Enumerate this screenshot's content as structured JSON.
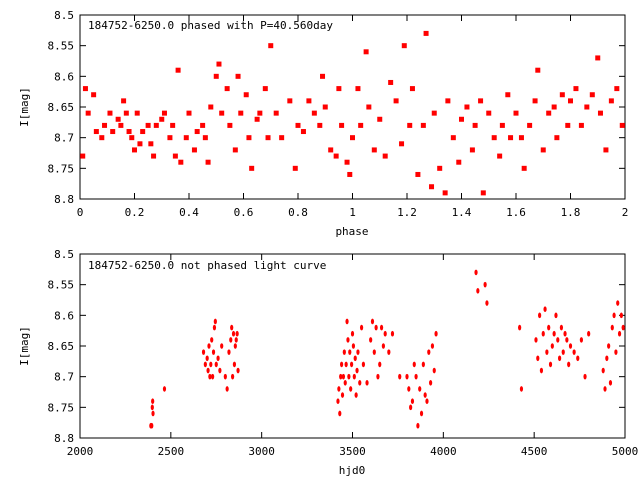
{
  "chart_data": [
    {
      "type": "scatter",
      "title": "184752-6250.0 phased with P=40.560day",
      "xlabel": "phase",
      "ylabel": "I[mag]",
      "xlim": [
        0,
        2
      ],
      "ylim": [
        8.8,
        8.5
      ],
      "y_inverted": true,
      "xticks": [
        "0",
        "0.2",
        "0.4",
        "0.6",
        "0.8",
        "1",
        "1.2",
        "1.4",
        "1.6",
        "1.8",
        "2"
      ],
      "xtick_values": [
        0,
        0.2,
        0.4,
        0.6,
        0.8,
        1.0,
        1.2,
        1.4,
        1.6,
        1.8,
        2.0
      ],
      "yticks": [
        "8.5",
        "8.55",
        "8.6",
        "8.65",
        "8.7",
        "8.75",
        "8.8"
      ],
      "ytick_values": [
        8.5,
        8.55,
        8.6,
        8.65,
        8.7,
        8.75,
        8.8
      ],
      "marker_color": "#ff0000",
      "series": [
        {
          "x": [
            0.01,
            0.02,
            0.03,
            0.05,
            0.06,
            0.08,
            0.09,
            0.11,
            0.12,
            0.14,
            0.15,
            0.16,
            0.17,
            0.18,
            0.19,
            0.2,
            0.21,
            0.22,
            0.23,
            0.25,
            0.26,
            0.27,
            0.28,
            0.3,
            0.31,
            0.33,
            0.34,
            0.35,
            0.36,
            0.37,
            0.39,
            0.4,
            0.42,
            0.43,
            0.45,
            0.46,
            0.47,
            0.48,
            0.5,
            0.51,
            0.52,
            0.54,
            0.55,
            0.57,
            0.58,
            0.59,
            0.61,
            0.62,
            0.63,
            0.65,
            0.66,
            0.68,
            0.69,
            0.7,
            0.72,
            0.74,
            0.77,
            0.79,
            0.8,
            0.82,
            0.84,
            0.86,
            0.88,
            0.89,
            0.9,
            0.92,
            0.94,
            0.95,
            0.96,
            0.98,
            0.99,
            1.0,
            1.02,
            1.03,
            1.05,
            1.06,
            1.08,
            1.1,
            1.12,
            1.14,
            1.16,
            1.18,
            1.19,
            1.21,
            1.22,
            1.24,
            1.26,
            1.27,
            1.29,
            1.3,
            1.32,
            1.34,
            1.35,
            1.37,
            1.39,
            1.4,
            1.42,
            1.44,
            1.45,
            1.47,
            1.48,
            1.5,
            1.52,
            1.54,
            1.55,
            1.57,
            1.58,
            1.6,
            1.62,
            1.63,
            1.65,
            1.67,
            1.68,
            1.7,
            1.72,
            1.74,
            1.75,
            1.77,
            1.79,
            1.8,
            1.82,
            1.84,
            1.86,
            1.88,
            1.9,
            1.91,
            1.93,
            1.95,
            1.97,
            1.99
          ],
          "y": [
            8.73,
            8.62,
            8.66,
            8.63,
            8.69,
            8.7,
            8.68,
            8.66,
            8.69,
            8.67,
            8.68,
            8.64,
            8.66,
            8.69,
            8.7,
            8.72,
            8.66,
            8.71,
            8.69,
            8.68,
            8.71,
            8.73,
            8.68,
            8.67,
            8.66,
            8.7,
            8.68,
            8.73,
            8.59,
            8.74,
            8.7,
            8.66,
            8.72,
            8.69,
            8.68,
            8.7,
            8.74,
            8.65,
            8.6,
            8.58,
            8.66,
            8.62,
            8.68,
            8.72,
            8.6,
            8.66,
            8.63,
            8.7,
            8.75,
            8.67,
            8.66,
            8.62,
            8.7,
            8.55,
            8.66,
            8.7,
            8.64,
            8.75,
            8.68,
            8.69,
            8.64,
            8.66,
            8.68,
            8.6,
            8.65,
            8.72,
            8.73,
            8.62,
            8.68,
            8.74,
            8.76,
            8.7,
            8.62,
            8.68,
            8.56,
            8.65,
            8.72,
            8.67,
            8.73,
            8.61,
            8.64,
            8.71,
            8.55,
            8.68,
            8.62,
            8.76,
            8.68,
            8.53,
            8.78,
            8.66,
            8.75,
            8.79,
            8.64,
            8.7,
            8.74,
            8.67,
            8.65,
            8.72,
            8.68,
            8.64,
            8.79,
            8.66,
            8.7,
            8.73,
            8.68,
            8.63,
            8.7,
            8.66,
            8.7,
            8.75,
            8.68,
            8.64,
            8.59,
            8.72,
            8.66,
            8.65,
            8.7,
            8.63,
            8.68,
            8.64,
            8.62,
            8.68,
            8.65,
            8.63,
            8.57,
            8.66,
            8.72,
            8.64,
            8.62,
            8.68
          ]
        }
      ]
    },
    {
      "type": "scatter",
      "title": "184752-6250.0 not phased light curve",
      "xlabel": "hjd0",
      "ylabel": "I[mag]",
      "xlim": [
        2000,
        5000
      ],
      "ylim": [
        8.8,
        8.5
      ],
      "y_inverted": true,
      "xticks": [
        "2000",
        "2500",
        "3000",
        "3500",
        "4000",
        "4500",
        "5000"
      ],
      "xtick_values": [
        2000,
        2500,
        3000,
        3500,
        4000,
        4500,
        5000
      ],
      "yticks": [
        "8.5",
        "8.55",
        "8.6",
        "8.65",
        "8.7",
        "8.75",
        "8.8"
      ],
      "ytick_values": [
        8.5,
        8.55,
        8.6,
        8.65,
        8.7,
        8.75,
        8.8
      ],
      "marker_color": "#ff0000",
      "series": [
        {
          "x": [
            2390,
            2395,
            2398,
            2400,
            2402,
            2465,
            2680,
            2690,
            2700,
            2705,
            2710,
            2715,
            2720,
            2725,
            2730,
            2735,
            2740,
            2745,
            2750,
            2760,
            2770,
            2780,
            2800,
            2810,
            2820,
            2830,
            2835,
            2840,
            2845,
            2850,
            2855,
            2860,
            2865,
            2870,
            3420,
            3425,
            3430,
            3435,
            3440,
            3445,
            3450,
            3455,
            3460,
            3465,
            3470,
            3475,
            3480,
            3485,
            3490,
            3495,
            3500,
            3505,
            3510,
            3515,
            3520,
            3525,
            3530,
            3540,
            3550,
            3560,
            3580,
            3600,
            3610,
            3620,
            3630,
            3640,
            3650,
            3660,
            3670,
            3680,
            3700,
            3720,
            3760,
            3800,
            3810,
            3820,
            3830,
            3840,
            3850,
            3860,
            3870,
            3880,
            3890,
            3900,
            3910,
            3920,
            3930,
            3940,
            3950,
            3960,
            4180,
            4190,
            4230,
            4240,
            4420,
            4430,
            4510,
            4520,
            4530,
            4540,
            4550,
            4560,
            4570,
            4580,
            4590,
            4600,
            4610,
            4620,
            4630,
            4640,
            4650,
            4660,
            4670,
            4680,
            4690,
            4700,
            4720,
            4740,
            4760,
            4780,
            4800,
            4880,
            4890,
            4900,
            4910,
            4920,
            4930,
            4940,
            4950,
            4960,
            4970,
            4980,
            4990
          ],
          "y": [
            8.78,
            8.78,
            8.75,
            8.74,
            8.76,
            8.72,
            8.66,
            8.68,
            8.67,
            8.69,
            8.65,
            8.7,
            8.68,
            8.64,
            8.7,
            8.66,
            8.62,
            8.61,
            8.68,
            8.67,
            8.69,
            8.65,
            8.7,
            8.72,
            8.66,
            8.64,
            8.62,
            8.7,
            8.63,
            8.68,
            8.65,
            8.64,
            8.63,
            8.69,
            8.74,
            8.72,
            8.76,
            8.7,
            8.68,
            8.73,
            8.7,
            8.66,
            8.71,
            8.68,
            8.61,
            8.64,
            8.7,
            8.66,
            8.72,
            8.68,
            8.63,
            8.65,
            8.7,
            8.67,
            8.73,
            8.69,
            8.66,
            8.71,
            8.62,
            8.68,
            8.71,
            8.64,
            8.61,
            8.66,
            8.62,
            8.7,
            8.68,
            8.62,
            8.65,
            8.63,
            8.66,
            8.63,
            8.7,
            8.7,
            8.72,
            8.75,
            8.74,
            8.68,
            8.7,
            8.78,
            8.72,
            8.76,
            8.68,
            8.73,
            8.74,
            8.66,
            8.71,
            8.65,
            8.69,
            8.63,
            8.53,
            8.56,
            8.55,
            8.58,
            8.62,
            8.72,
            8.64,
            8.67,
            8.6,
            8.69,
            8.63,
            8.59,
            8.66,
            8.62,
            8.68,
            8.65,
            8.63,
            8.6,
            8.64,
            8.67,
            8.62,
            8.66,
            8.63,
            8.64,
            8.68,
            8.65,
            8.66,
            8.67,
            8.64,
            8.7,
            8.63,
            8.69,
            8.72,
            8.67,
            8.65,
            8.71,
            8.62,
            8.6,
            8.66,
            8.58,
            8.63,
            8.6,
            8.62
          ]
        }
      ]
    }
  ]
}
